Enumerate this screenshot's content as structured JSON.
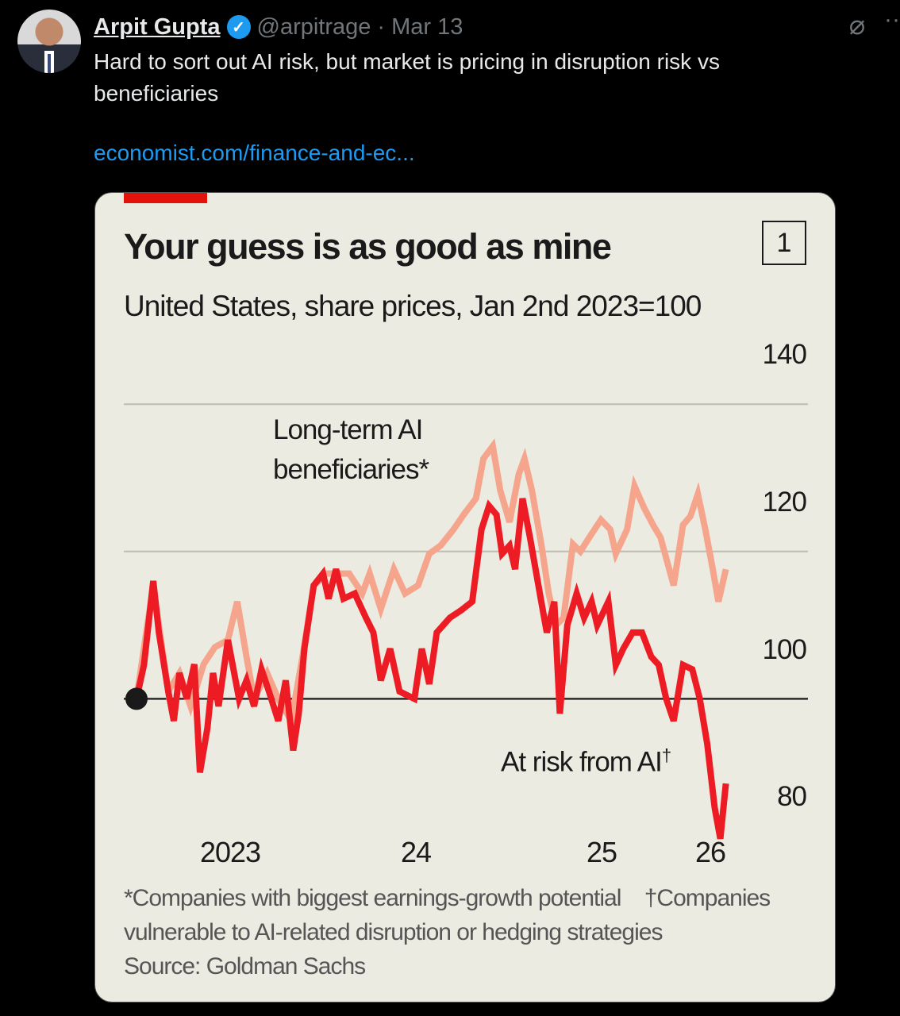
{
  "tweet": {
    "author_name": "Arpit Gupta",
    "handle": "@arpitrage",
    "separator": "·",
    "date": "Mar 13",
    "verified_icon": "verified-badge-icon",
    "text": "Hard to sort out AI risk, but market is pricing in disruption risk vs beneficiaries",
    "link": "economist.com/finance-and-ec...",
    "more_icon": "more-dots-icon",
    "grok_icon": "grok-icon"
  },
  "colors": {
    "link": "#1d9bf0",
    "economist_red": "#e3120b",
    "series_risk": "#ed1c24",
    "series_beneficiaries": "#f6a58d",
    "card_bg": "#ecebe1"
  },
  "chart_data": {
    "type": "line",
    "title": "Your guess is as good as mine",
    "chart_number": "1",
    "subtitle": "United States, share prices, Jan 2nd 2023=100",
    "ylim": [
      80,
      140
    ],
    "yticks": [
      "140",
      "120",
      "100",
      "80"
    ],
    "ytick_values": [
      140,
      120,
      100,
      80
    ],
    "xlim": [
      2023.0,
      2026.2
    ],
    "xtick_labels": [
      {
        "label": "2023",
        "x": 2023.5
      },
      {
        "label": "24",
        "x": 2024.5
      },
      {
        "label": "25",
        "x": 2025.5
      },
      {
        "label": "26",
        "x": 2026.09
      }
    ],
    "xtick_marks": [
      2023.0,
      2024.0,
      2025.0,
      2026.0,
      2026.17
    ],
    "series": [
      {
        "name": "Long-term AI beneficiaries*",
        "label_line1": "Long-term AI",
        "label_line2": "beneficiaries*",
        "color": "#f6a58d",
        "x": [
          2023.0,
          2023.09,
          2023.17,
          2023.23,
          2023.29,
          2023.36,
          2023.42,
          2023.49,
          2023.54,
          2023.59,
          2023.63,
          2023.7,
          2023.76,
          2023.83,
          2023.89,
          2023.95,
          2024.02,
          2024.08,
          2024.14,
          2024.21,
          2024.25,
          2024.31,
          2024.38,
          2024.44,
          2024.51,
          2024.57,
          2024.63,
          2024.7,
          2024.76,
          2024.82,
          2024.86,
          2024.91,
          2024.95,
          2025.0,
          2025.05,
          2025.08,
          2025.12,
          2025.17,
          2025.21,
          2025.25,
          2025.29,
          2025.34,
          2025.38,
          2025.43,
          2025.49,
          2025.54,
          2025.57,
          2025.63,
          2025.67,
          2025.72,
          2025.77,
          2025.81,
          2025.88,
          2025.93,
          2025.97,
          2026.01,
          2026.05,
          2026.09,
          2026.12,
          2026.16
        ],
        "y": [
          100,
          115.4,
          101,
          103.5,
          99,
          104.7,
          107,
          108,
          113.2,
          105.7,
          100,
          103.5,
          100,
          97,
          105.7,
          115.4,
          117,
          117,
          117,
          114.3,
          117,
          112.2,
          117.6,
          114.3,
          115.4,
          119.7,
          120.8,
          123,
          125.2,
          127.2,
          132.6,
          134.3,
          128.3,
          124,
          130.5,
          132.6,
          128.3,
          121,
          114.3,
          110,
          111,
          121,
          120,
          122,
          124.3,
          123,
          119.7,
          123,
          128.9,
          126,
          123.6,
          121.9,
          115.4,
          123.6,
          124.8,
          127.8,
          123,
          117.6,
          113.2,
          117.6
        ]
      },
      {
        "name": "At risk from AI†",
        "label": "At risk from AI",
        "label_sup": "†",
        "color": "#ed1c24",
        "x": [
          2023.0,
          2023.04,
          2023.09,
          2023.12,
          2023.17,
          2023.2,
          2023.23,
          2023.27,
          2023.31,
          2023.34,
          2023.38,
          2023.41,
          2023.44,
          2023.49,
          2023.52,
          2023.55,
          2023.59,
          2023.63,
          2023.67,
          2023.71,
          2023.76,
          2023.8,
          2023.84,
          2023.87,
          2023.9,
          2023.95,
          2024.0,
          2024.03,
          2024.07,
          2024.11,
          2024.17,
          2024.23,
          2024.27,
          2024.31,
          2024.36,
          2024.41,
          2024.49,
          2024.53,
          2024.57,
          2024.61,
          2024.68,
          2024.74,
          2024.8,
          2024.85,
          2024.89,
          2024.93,
          2024.96,
          2025.0,
          2025.03,
          2025.07,
          2025.11,
          2025.17,
          2025.2,
          2025.24,
          2025.27,
          2025.31,
          2025.36,
          2025.4,
          2025.44,
          2025.47,
          2025.53,
          2025.57,
          2025.61,
          2025.66,
          2025.71,
          2025.76,
          2025.8,
          2025.84,
          2025.88,
          2025.93,
          2025.98,
          2026.02,
          2026.06,
          2026.1,
          2026.13,
          2026.16
        ],
        "y": [
          100,
          104.6,
          116,
          109,
          101,
          97,
          103.5,
          100,
          104.7,
          90,
          96,
          103.5,
          99,
          108,
          104,
          100,
          102.5,
          99,
          104,
          101,
          97,
          102.5,
          93,
          98,
          106.8,
          115.4,
          117,
          113.6,
          117.6,
          113.6,
          114.3,
          111,
          109,
          102.5,
          106.8,
          101,
          100,
          106.8,
          102,
          109,
          111,
          112,
          113.2,
          123,
          126.2,
          125,
          119.7,
          120.8,
          117.6,
          127.2,
          121.9,
          113.2,
          109,
          113.2,
          98,
          110,
          114.3,
          111,
          113.2,
          110,
          113.2,
          104.6,
          106.8,
          109,
          109,
          105.7,
          104.6,
          100,
          97,
          104.6,
          104,
          100,
          93.9,
          85.2,
          81,
          88.5
        ]
      }
    ],
    "footnote_line1a": "*Companies with biggest earnings-growth potential",
    "footnote_line1b": "†Companies",
    "footnote_line2": "vulnerable to AI-related disruption or hedging strategies",
    "source": "Source: Goldman Sachs"
  }
}
